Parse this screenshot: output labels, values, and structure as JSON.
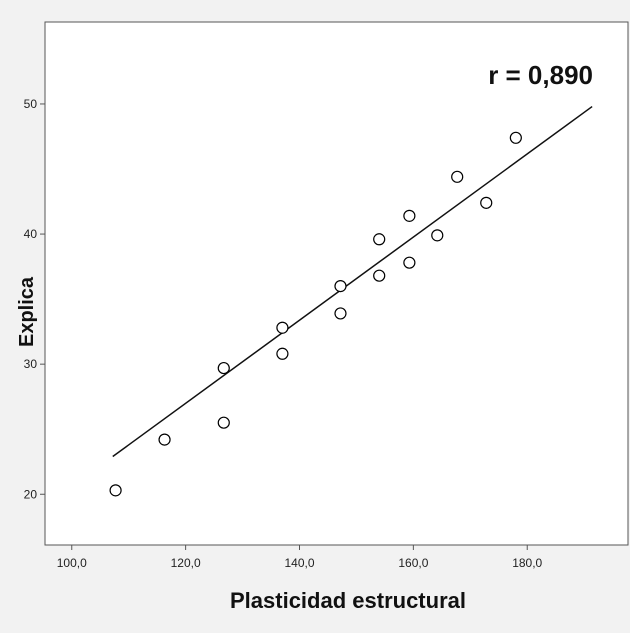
{
  "chart_data": {
    "type": "scatter",
    "x_label": "Plasticidad estructural",
    "y_label": "Explica",
    "annotation": "r = 0,890",
    "x": [
      107.7,
      116.3,
      126.7,
      126.7,
      137.0,
      137.0,
      147.2,
      147.2,
      154.0,
      154.0,
      159.3,
      159.3,
      164.2,
      167.7,
      172.8,
      178.0
    ],
    "values": [
      20.3,
      24.2,
      29.7,
      25.5,
      32.8,
      30.8,
      36.0,
      33.9,
      39.6,
      36.8,
      41.4,
      37.8,
      39.9,
      44.4,
      42.4,
      47.4
    ],
    "trend_line": {
      "x": [
        107.2,
        191.4
      ],
      "y": [
        22.9,
        49.8
      ]
    },
    "color": "#000000",
    "xlim": [
      95.3,
      197.7
    ],
    "ylim": [
      16.1,
      56.3
    ],
    "xticks": [
      {
        "value": 100,
        "label": "100,0"
      },
      {
        "value": 120,
        "label": "120,0"
      },
      {
        "value": 140,
        "label": "140,0"
      },
      {
        "value": 160,
        "label": "160,0"
      },
      {
        "value": 180,
        "label": "180,0"
      }
    ],
    "yticks": [
      20,
      30,
      40,
      50
    ]
  }
}
